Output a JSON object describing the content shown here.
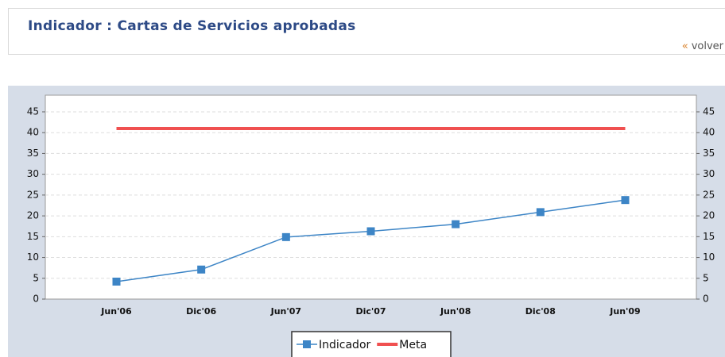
{
  "header": {
    "title": "Indicador : Cartas de Servicios aprobadas",
    "back_arrow": "«",
    "back": "volver"
  },
  "chart_data": {
    "type": "line",
    "categories": [
      "Jun'06",
      "Dic'06",
      "Jun'07",
      "Dic'07",
      "Jun'08",
      "Dic'08",
      "Jun'09"
    ],
    "series": [
      {
        "name": "Indicador",
        "color": "#3d85c6",
        "values": [
          4.2,
          7.1,
          14.9,
          16.3,
          18,
          20.9,
          23.8
        ]
      },
      {
        "name": "Meta",
        "color": "#f05050",
        "values": [
          41,
          41,
          41,
          41,
          41,
          41,
          41
        ]
      }
    ],
    "ylim": [
      0,
      49
    ],
    "yticks": [
      0,
      5,
      10,
      15,
      20,
      25,
      30,
      35,
      40,
      45
    ],
    "grid": true,
    "legend": "bottom"
  }
}
